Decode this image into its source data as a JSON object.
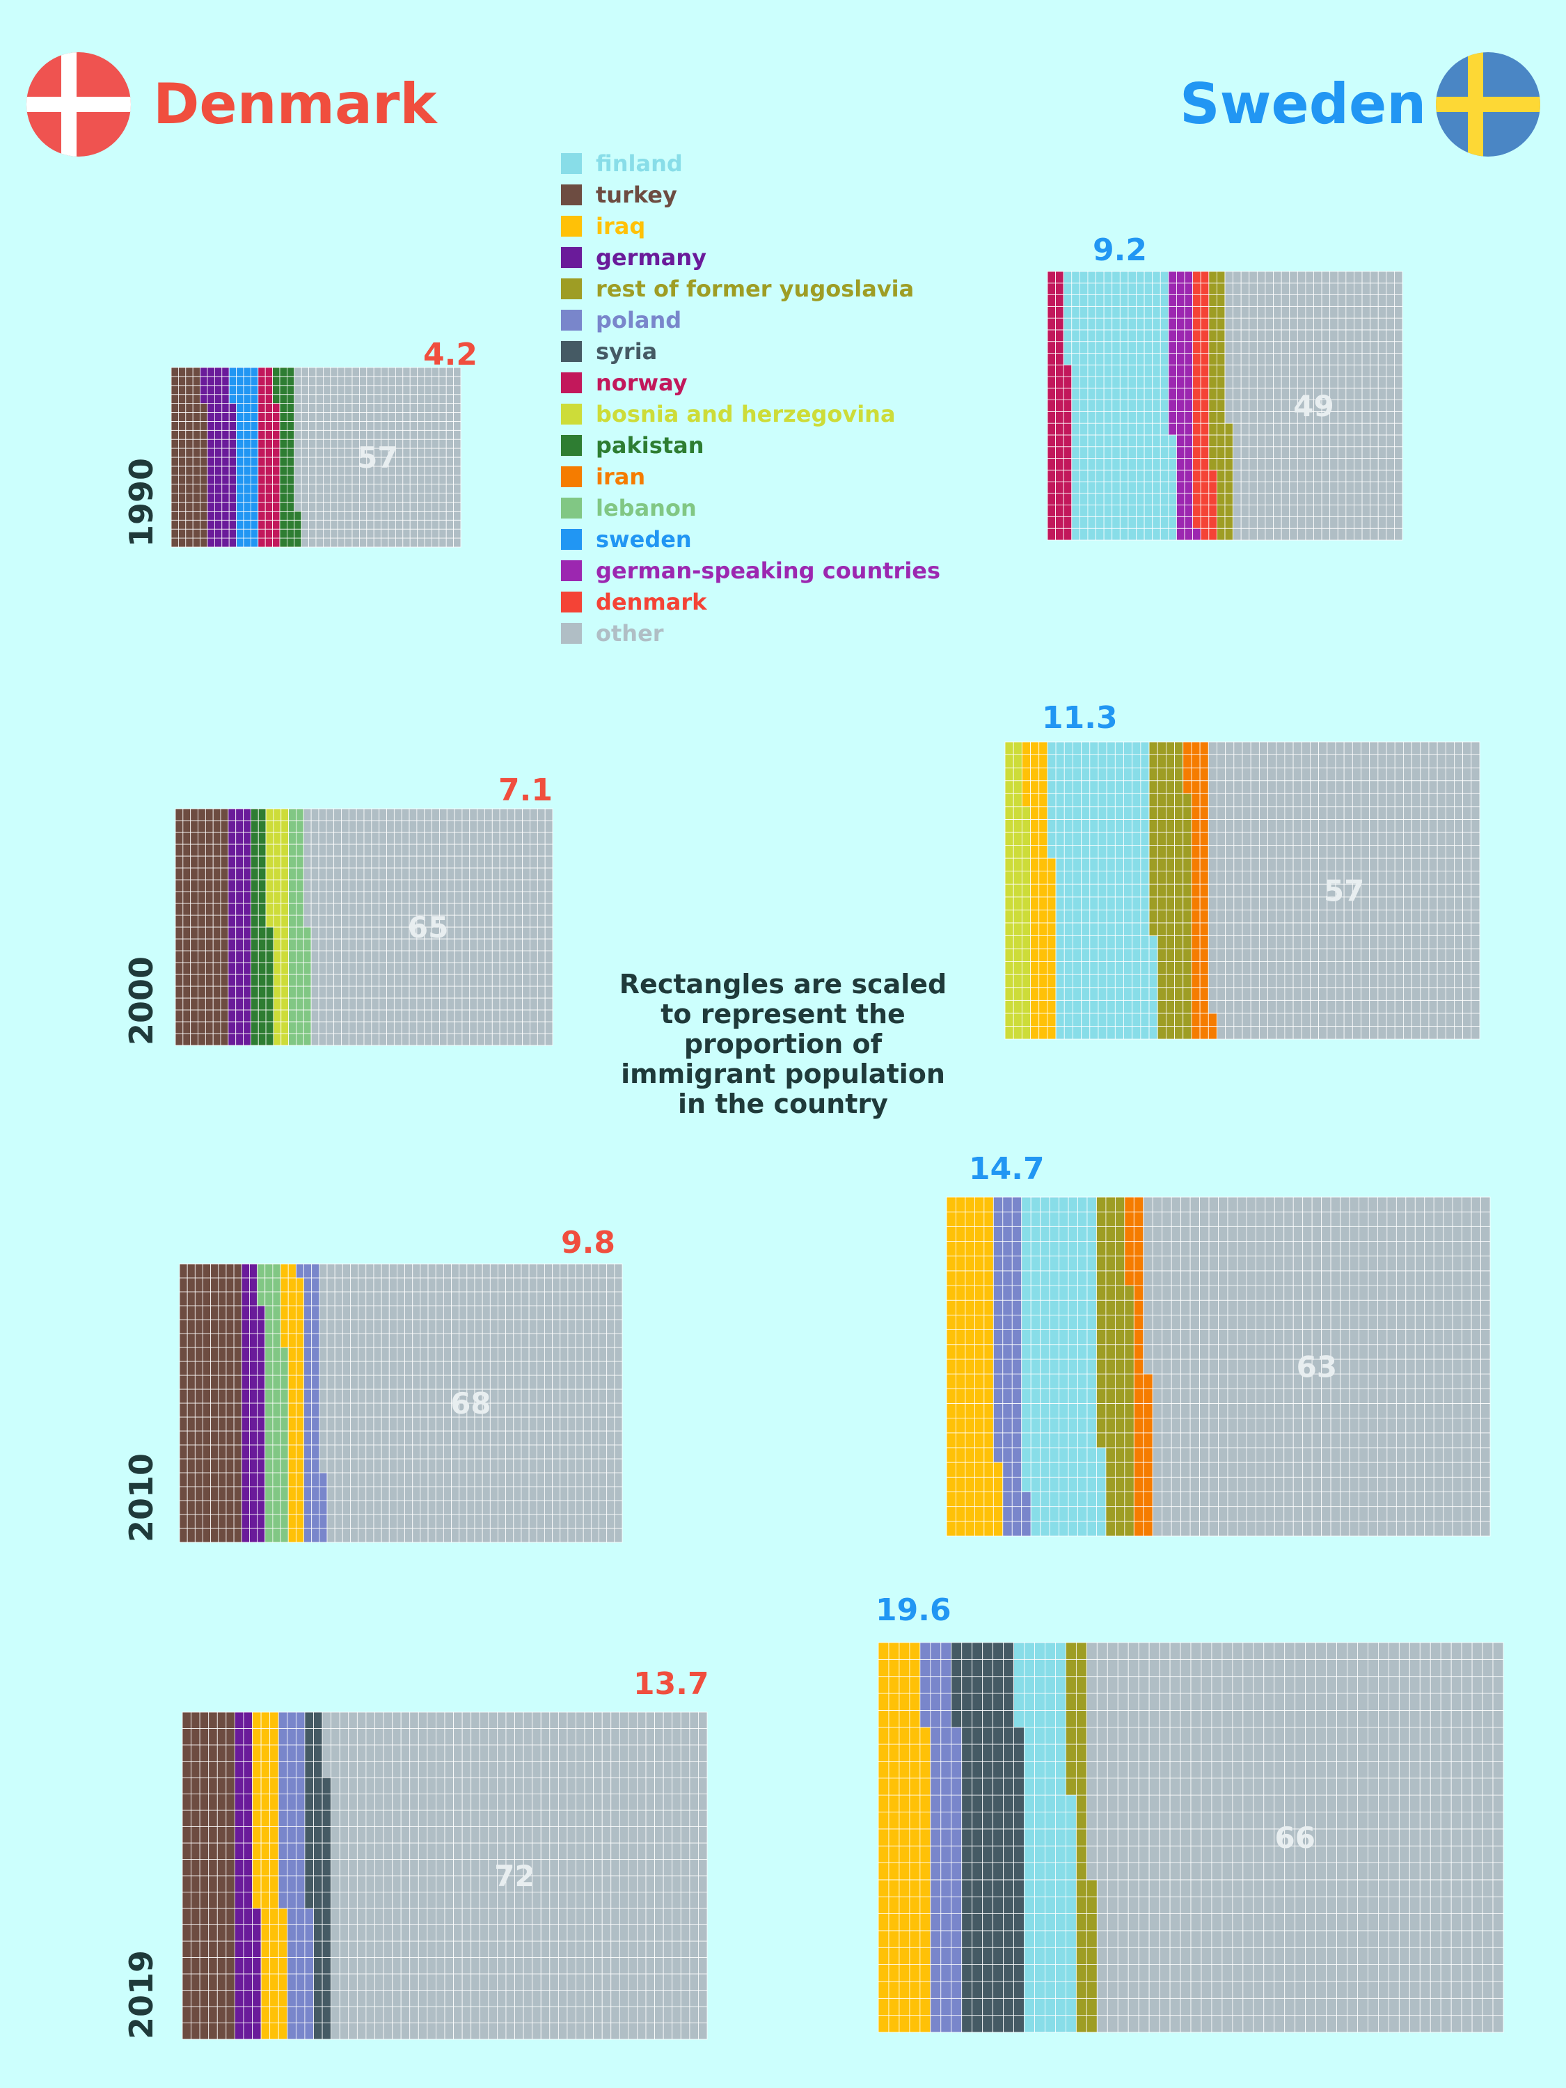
{
  "colors": {
    "background": "#ccfffd",
    "denmark_accent": "#f04e3e",
    "sweden_accent": "#2196f3",
    "grid_line": "#ffffff"
  },
  "header": {
    "denmark_title": "Denmark",
    "sweden_title": "Sweden"
  },
  "note": "Rectangles are scaled to represent the proportion of immigrant population in the country",
  "chart_data": {
    "type": "waffle",
    "title": "",
    "legend": [
      {
        "name": "finland",
        "color": "#88dde8"
      },
      {
        "name": "turkey",
        "color": "#6d4c41"
      },
      {
        "name": "iraq",
        "color": "#ffc107"
      },
      {
        "name": "germany",
        "color": "#6a1b9a"
      },
      {
        "name": "rest of former yugoslavia",
        "color": "#9e9d24"
      },
      {
        "name": "poland",
        "color": "#7986cb"
      },
      {
        "name": "syria",
        "color": "#455a64"
      },
      {
        "name": "norway",
        "color": "#c2185b"
      },
      {
        "name": "bosnia and herzegovina",
        "color": "#cddc39"
      },
      {
        "name": "pakistan",
        "color": "#2e7d32"
      },
      {
        "name": "iran",
        "color": "#f57c00"
      },
      {
        "name": "lebanon",
        "color": "#81c784"
      },
      {
        "name": "sweden",
        "color": "#2196f3"
      },
      {
        "name": "german-speaking countries",
        "color": "#9c27b0"
      },
      {
        "name": "denmark",
        "color": "#f44336"
      },
      {
        "name": "other",
        "color": "#b0bec5"
      }
    ],
    "panels": [
      {
        "country": "Denmark",
        "year": "1990",
        "total": "4.2",
        "other_label": "57",
        "segments": [
          [
            "turkey",
            12
          ],
          [
            "germany",
            10
          ],
          [
            "sweden",
            8
          ],
          [
            "norway",
            7
          ],
          [
            "pakistan",
            6
          ],
          [
            "other",
            57
          ]
        ]
      },
      {
        "country": "Denmark",
        "year": "2000",
        "total": "7.1",
        "other_label": "65",
        "segments": [
          [
            "turkey",
            14
          ],
          [
            "germany",
            6
          ],
          [
            "pakistan",
            5
          ],
          [
            "bosnia and herzegovina",
            5
          ],
          [
            "lebanon",
            5
          ],
          [
            "other",
            65
          ]
        ]
      },
      {
        "country": "Denmark",
        "year": "2010",
        "total": "9.8",
        "other_label": "68",
        "segments": [
          [
            "turkey",
            14
          ],
          [
            "germany",
            5
          ],
          [
            "lebanon",
            5
          ],
          [
            "iraq",
            4
          ],
          [
            "poland",
            4
          ],
          [
            "other",
            68
          ]
        ]
      },
      {
        "country": "Denmark",
        "year": "2019",
        "total": "13.7",
        "other_label": "72",
        "segments": [
          [
            "turkey",
            10
          ],
          [
            "germany",
            4
          ],
          [
            "iraq",
            5
          ],
          [
            "poland",
            5
          ],
          [
            "syria",
            4
          ],
          [
            "other",
            72
          ]
        ]
      },
      {
        "country": "Sweden",
        "year": "1990",
        "total": "9.2",
        "other_label": "49",
        "segments": [
          [
            "norway",
            6
          ],
          [
            "finland",
            29
          ],
          [
            "german-speaking countries",
            6
          ],
          [
            "denmark",
            5
          ],
          [
            "rest of former yugoslavia",
            5
          ],
          [
            "other",
            49
          ]
        ]
      },
      {
        "country": "Sweden",
        "year": "2000",
        "total": "11.3",
        "other_label": "57",
        "segments": [
          [
            "bosnia and herzegovina",
            5
          ],
          [
            "iraq",
            5
          ],
          [
            "finland",
            21
          ],
          [
            "rest of former yugoslavia",
            8
          ],
          [
            "iran",
            4
          ],
          [
            "other",
            57
          ]
        ]
      },
      {
        "country": "Sweden",
        "year": "2010",
        "total": "14.7",
        "other_label": "63",
        "segments": [
          [
            "iraq",
            9
          ],
          [
            "poland",
            5
          ],
          [
            "finland",
            14
          ],
          [
            "rest of former yugoslavia",
            6
          ],
          [
            "iran",
            3
          ],
          [
            "other",
            63
          ]
        ]
      },
      {
        "country": "Sweden",
        "year": "2019",
        "total": "19.6",
        "other_label": "66",
        "segments": [
          [
            "iraq",
            8
          ],
          [
            "poland",
            5
          ],
          [
            "syria",
            10
          ],
          [
            "finland",
            8
          ],
          [
            "rest of former yugoslavia",
            3
          ],
          [
            "other",
            66
          ]
        ]
      }
    ]
  }
}
